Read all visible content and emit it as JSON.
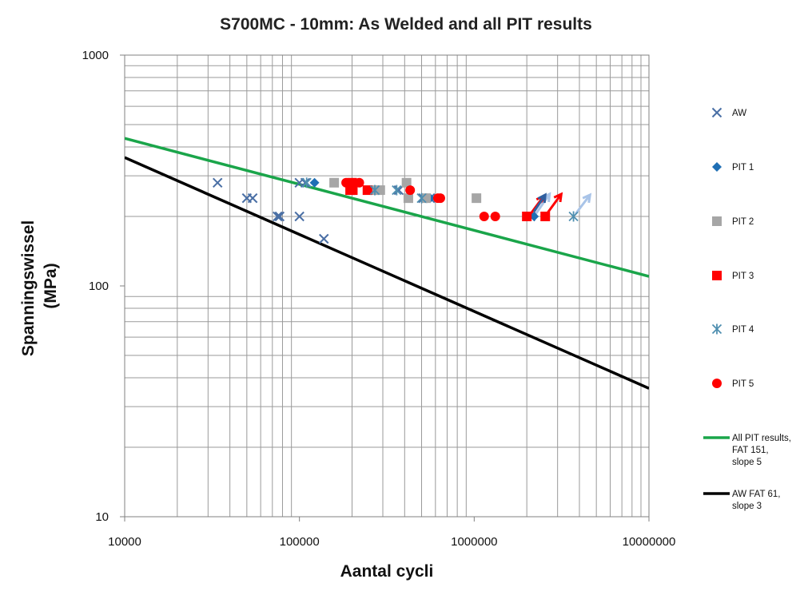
{
  "chart_data": {
    "type": "scatter",
    "title": "S700MC - 10mm: As Welded and all PIT results",
    "xlabel": "Aantal cycli",
    "ylabel": [
      "Spanningswissel",
      "(MPa)"
    ],
    "x_scale": "log",
    "y_scale": "log",
    "xlim": [
      10000,
      10000000
    ],
    "ylim": [
      10,
      1000
    ],
    "x_ticks": [
      "10000",
      "100000",
      "1000000",
      "10000000"
    ],
    "y_ticks": [
      "10",
      "100",
      "1000"
    ],
    "grid": true,
    "legend_position": "right",
    "series": [
      {
        "name": "AW",
        "marker": "x",
        "color": "#4a6fa5",
        "points": [
          [
            34000,
            280
          ],
          [
            50000,
            240
          ],
          [
            54000,
            240
          ],
          [
            75000,
            200
          ],
          [
            77000,
            200
          ],
          [
            100000,
            200
          ],
          [
            100000,
            280
          ],
          [
            108000,
            280
          ],
          [
            138000,
            160
          ],
          [
            370000,
            260
          ],
          [
            510000,
            240
          ],
          [
            560000,
            240
          ],
          [
            2100000,
            200
          ]
        ]
      },
      {
        "name": "PIT 1",
        "marker": "diamond",
        "color": "#1f6fb5",
        "points": [
          [
            122000,
            280
          ],
          [
            560000,
            240
          ],
          [
            2000000,
            200
          ],
          [
            2200000,
            200
          ]
        ]
      },
      {
        "name": "PIT 2",
        "marker": "square",
        "color": "#a6a6a6",
        "points": [
          [
            158000,
            280
          ],
          [
            270000,
            260
          ],
          [
            290000,
            260
          ],
          [
            410000,
            280
          ],
          [
            420000,
            240
          ],
          [
            530000,
            240
          ],
          [
            1030000,
            240
          ]
        ]
      },
      {
        "name": "PIT 3",
        "marker": "square",
        "color": "#ff0000",
        "points": [
          [
            195000,
            260
          ],
          [
            200000,
            280
          ],
          [
            202000,
            260
          ],
          [
            245000,
            260
          ],
          [
            2000000,
            200
          ],
          [
            2550000,
            200
          ]
        ]
      },
      {
        "name": "PIT 4",
        "marker": "asterisk",
        "color": "#4f8fb0",
        "points": [
          [
            110000,
            280
          ],
          [
            270000,
            260
          ],
          [
            360000,
            260
          ],
          [
            500000,
            240
          ],
          [
            3700000,
            200
          ]
        ]
      },
      {
        "name": "PIT 5",
        "marker": "circle",
        "color": "#ff0000",
        "points": [
          [
            185000,
            280
          ],
          [
            220000,
            280
          ],
          [
            430000,
            260
          ],
          [
            620000,
            240
          ],
          [
            640000,
            240
          ],
          [
            1140000,
            200
          ],
          [
            1320000,
            200
          ]
        ]
      },
      {
        "name": [
          "All PIT results,",
          "FAT 151,",
          "slope 5"
        ],
        "marker": "line",
        "color": "#1aa54a",
        "points": [
          [
            10000,
            436
          ],
          [
            10000000,
            110
          ]
        ]
      },
      {
        "name": [
          "AW FAT 61,",
          "slope 3"
        ],
        "marker": "line",
        "color": "#000000",
        "points": [
          [
            10000,
            360
          ],
          [
            10000000,
            36
          ]
        ]
      }
    ],
    "runout_arrows": [
      {
        "from": [
          2050000,
          200
        ],
        "to": [
          2500000,
          245
        ],
        "color": "#ff0000"
      },
      {
        "from": [
          2250000,
          205
        ],
        "to": [
          2700000,
          250
        ],
        "color": "#a9c4e8"
      },
      {
        "from": [
          2200000,
          210
        ],
        "to": [
          2550000,
          248
        ],
        "color": "#2f5f9f"
      },
      {
        "from": [
          2600000,
          205
        ],
        "to": [
          3150000,
          250
        ],
        "color": "#ff0000"
      },
      {
        "from": [
          3800000,
          205
        ],
        "to": [
          4600000,
          248
        ],
        "color": "#a9c4e8"
      }
    ]
  }
}
